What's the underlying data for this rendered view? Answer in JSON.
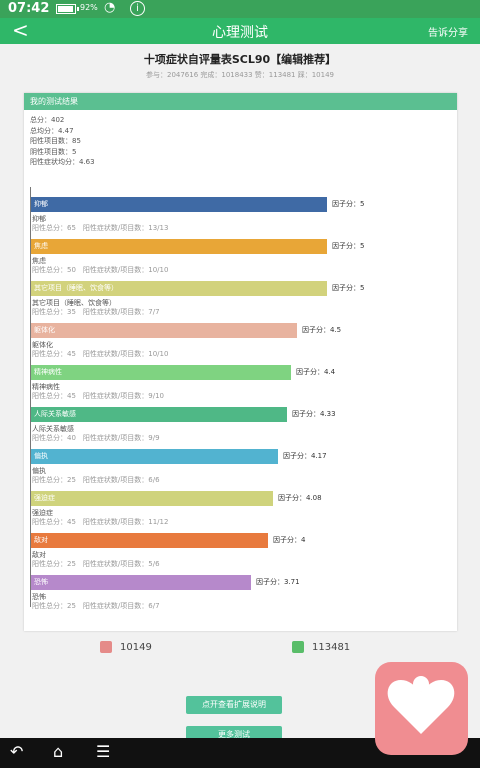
{
  "status": {
    "time": "07:42",
    "battery": "92%"
  },
  "appbar": {
    "back": "<",
    "title": "心理测试",
    "share": "告诉分享"
  },
  "test": {
    "title": "十项症状自评量表SCL90【编辑推荐】",
    "stats": "参与：2047616 完成：1018433 赞：113481 踩：10149"
  },
  "card": {
    "header": "我的测试结果",
    "summary": [
      "总分：402",
      "总均分：4.47",
      "阳性项目数：85",
      "阴性项目数：5",
      "阳性症状均分：4.63"
    ]
  },
  "factors": [
    {
      "name": "抑郁",
      "label": "因子分：5",
      "dim": "抑郁",
      "meta": "阳性总分：65　阳性症状数/项目数：13/13",
      "score": 5,
      "color": "#3f6aa5"
    },
    {
      "name": "焦虑",
      "label": "因子分：5",
      "dim": "焦虑",
      "meta": "阳性总分：50　阳性症状数/项目数：10/10",
      "score": 5,
      "color": "#e8a637"
    },
    {
      "name": "其它项目（睡眠、饮食等）",
      "label": "因子分：5",
      "dim": "其它项目（睡眠、饮食等）",
      "meta": "阳性总分：35　阳性症状数/项目数：7/7",
      "score": 5,
      "color": "#d2d27c"
    },
    {
      "name": "躯体化",
      "label": "因子分：4.5",
      "dim": "躯体化",
      "meta": "阳性总分：45　阳性症状数/项目数：10/10",
      "score": 4.5,
      "color": "#e8b39f"
    },
    {
      "name": "精神病性",
      "label": "因子分：4.4",
      "dim": "精神病性",
      "meta": "阳性总分：45　阳性症状数/项目数：9/10",
      "score": 4.4,
      "color": "#7fd381"
    },
    {
      "name": "人际关系敏感",
      "label": "因子分：4.33",
      "dim": "人际关系敏感",
      "meta": "阳性总分：40　阳性症状数/项目数：9/9",
      "score": 4.33,
      "color": "#4fb886"
    },
    {
      "name": "偏执",
      "label": "因子分：4.17",
      "dim": "偏执",
      "meta": "阳性总分：25　阳性症状数/项目数：6/6",
      "score": 4.17,
      "color": "#52b3d0"
    },
    {
      "name": "强迫症",
      "label": "因子分：4.08",
      "dim": "强迫症",
      "meta": "阳性总分：45　阳性症状数/项目数：11/12",
      "score": 4.08,
      "color": "#cfd37c"
    },
    {
      "name": "敌对",
      "label": "因子分：4",
      "dim": "敌对",
      "meta": "阳性总分：25　阳性症状数/项目数：5/6",
      "score": 4,
      "color": "#e87a3e"
    },
    {
      "name": "恐怖",
      "label": "因子分：3.71",
      "dim": "恐怖",
      "meta": "阳性总分：25　阳性症状数/项目数：6/7",
      "score": 3.71,
      "color": "#b689cb"
    }
  ],
  "votes": {
    "down": "10149",
    "up": "113481"
  },
  "buttons": {
    "primary": "点开查看扩展说明",
    "secondary": "更多测试"
  },
  "logo": {
    "icon": "heart-icon",
    "color": "#f08d91"
  }
}
